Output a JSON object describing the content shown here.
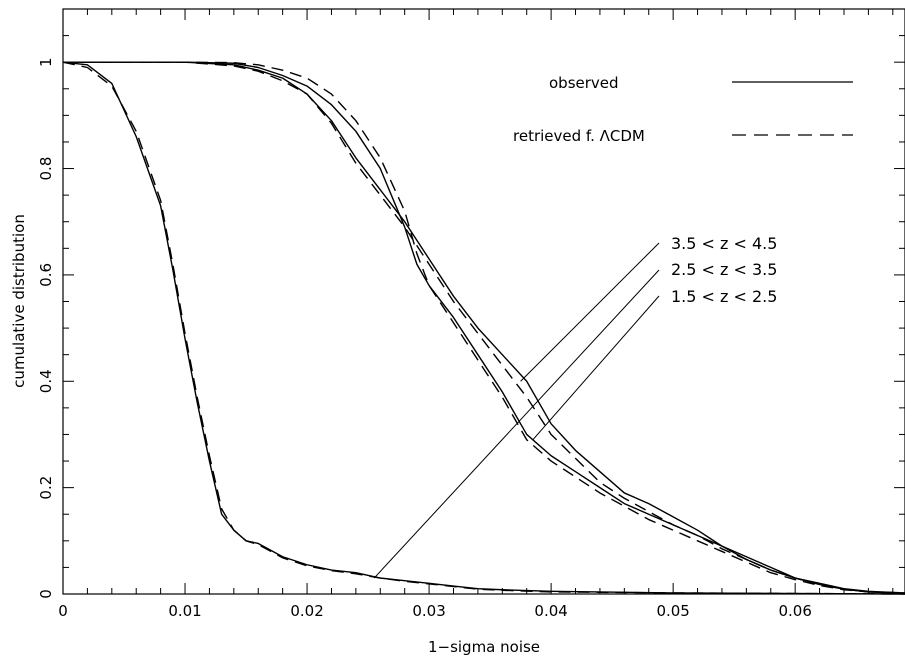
{
  "chart_data": {
    "type": "line",
    "title": "",
    "xlabel": "1−sigma noise",
    "ylabel": "cumulative distribution",
    "xlim": [
      0,
      0.069
    ],
    "ylim": [
      0,
      1.1
    ],
    "x_ticks": [
      0,
      0.01,
      0.02,
      0.03,
      0.04,
      0.05,
      0.06
    ],
    "x_tick_labels": [
      "0",
      "0.01",
      "0.02",
      "0.03",
      "0.04",
      "0.05",
      "0.06"
    ],
    "y_ticks": [
      0,
      0.2,
      0.4,
      0.6,
      0.8,
      1
    ],
    "y_tick_labels": [
      "0",
      "0.2",
      "0.4",
      "0.6",
      "0.8",
      "1"
    ],
    "grid": false,
    "legend": {
      "placement": "top-right",
      "entries": [
        {
          "label": "observed",
          "style": "solid"
        },
        {
          "label": "retrieved f. ΛCDM",
          "style": "dashed"
        }
      ]
    },
    "annotations": [
      {
        "text": "3.5 < z < 4.5",
        "points_to": [
          0.0375,
          0.4
        ]
      },
      {
        "text": "2.5 < z < 3.5",
        "points_to": [
          0.0255,
          0.03
        ]
      },
      {
        "text": "1.5 < z < 2.5",
        "points_to": [
          0.0385,
          0.29
        ]
      }
    ],
    "series": [
      {
        "style": "solid",
        "x": [
          0,
          0.002,
          0.004,
          0.006,
          0.008,
          0.009,
          0.01,
          0.011,
          0.012,
          0.013,
          0.014,
          0.015,
          0.016,
          0.018,
          0.02,
          0.022,
          0.024,
          0.026,
          0.028,
          0.03,
          0.032,
          0.034,
          0.036,
          0.04,
          0.05,
          0.069
        ],
        "y": [
          1.0,
          0.995,
          0.96,
          0.86,
          0.73,
          0.61,
          0.48,
          0.36,
          0.25,
          0.15,
          0.12,
          0.1,
          0.095,
          0.07,
          0.055,
          0.045,
          0.04,
          0.03,
          0.025,
          0.02,
          0.015,
          0.01,
          0.008,
          0.005,
          0.002,
          0.0
        ]
      },
      {
        "style": "dashed",
        "x": [
          0,
          0.002,
          0.004,
          0.006,
          0.008,
          0.009,
          0.01,
          0.011,
          0.012,
          0.013,
          0.014,
          0.015,
          0.016,
          0.018,
          0.02,
          0.022,
          0.024,
          0.026,
          0.028,
          0.03,
          0.032,
          0.034,
          0.036,
          0.04,
          0.05,
          0.069
        ],
        "y": [
          1.0,
          0.99,
          0.955,
          0.87,
          0.74,
          0.62,
          0.49,
          0.37,
          0.26,
          0.16,
          0.12,
          0.1,
          0.093,
          0.068,
          0.053,
          0.044,
          0.038,
          0.03,
          0.024,
          0.019,
          0.014,
          0.009,
          0.007,
          0.004,
          0.002,
          0.0
        ]
      },
      {
        "style": "solid",
        "x": [
          0,
          0.01,
          0.014,
          0.016,
          0.018,
          0.02,
          0.022,
          0.024,
          0.026,
          0.028,
          0.03,
          0.032,
          0.034,
          0.036,
          0.038,
          0.04,
          0.042,
          0.044,
          0.046,
          0.048,
          0.05,
          0.052,
          0.054,
          0.056,
          0.058,
          0.06,
          0.062,
          0.064,
          0.066,
          0.069
        ],
        "y": [
          1.0,
          1.0,
          0.995,
          0.985,
          0.97,
          0.94,
          0.89,
          0.82,
          0.76,
          0.7,
          0.63,
          0.56,
          0.5,
          0.45,
          0.4,
          0.32,
          0.27,
          0.23,
          0.19,
          0.17,
          0.145,
          0.12,
          0.09,
          0.07,
          0.05,
          0.03,
          0.02,
          0.01,
          0.005,
          0.002
        ]
      },
      {
        "style": "dashed",
        "x": [
          0,
          0.01,
          0.014,
          0.016,
          0.018,
          0.02,
          0.022,
          0.024,
          0.026,
          0.028,
          0.03,
          0.032,
          0.034,
          0.036,
          0.038,
          0.04,
          0.042,
          0.044,
          0.046,
          0.048,
          0.05,
          0.052,
          0.054,
          0.056,
          0.058,
          0.06,
          0.062,
          0.064,
          0.066,
          0.069
        ],
        "y": [
          1.0,
          1.0,
          0.993,
          0.983,
          0.965,
          0.94,
          0.885,
          0.81,
          0.75,
          0.69,
          0.62,
          0.55,
          0.49,
          0.43,
          0.37,
          0.3,
          0.255,
          0.21,
          0.18,
          0.155,
          0.13,
          0.11,
          0.085,
          0.065,
          0.045,
          0.03,
          0.018,
          0.009,
          0.004,
          0.002
        ]
      },
      {
        "style": "solid",
        "x": [
          0,
          0.01,
          0.014,
          0.016,
          0.018,
          0.02,
          0.022,
          0.024,
          0.026,
          0.028,
          0.029,
          0.03,
          0.032,
          0.034,
          0.036,
          0.038,
          0.04,
          0.042,
          0.044,
          0.046,
          0.048,
          0.05,
          0.052,
          0.054,
          0.056,
          0.058,
          0.06,
          0.062,
          0.064,
          0.066,
          0.069
        ],
        "y": [
          1.0,
          1.0,
          0.998,
          0.99,
          0.975,
          0.955,
          0.92,
          0.87,
          0.8,
          0.69,
          0.62,
          0.58,
          0.52,
          0.45,
          0.38,
          0.3,
          0.26,
          0.23,
          0.2,
          0.17,
          0.15,
          0.13,
          0.11,
          0.09,
          0.065,
          0.045,
          0.03,
          0.018,
          0.009,
          0.004,
          0.001
        ]
      },
      {
        "style": "dashed",
        "x": [
          0,
          0.01,
          0.014,
          0.016,
          0.018,
          0.02,
          0.022,
          0.024,
          0.026,
          0.028,
          0.029,
          0.03,
          0.032,
          0.034,
          0.036,
          0.038,
          0.04,
          0.042,
          0.044,
          0.046,
          0.048,
          0.05,
          0.052,
          0.054,
          0.056,
          0.058,
          0.06,
          0.062,
          0.064,
          0.066,
          0.069
        ],
        "y": [
          1.0,
          1.0,
          0.999,
          0.995,
          0.985,
          0.97,
          0.94,
          0.89,
          0.82,
          0.72,
          0.64,
          0.58,
          0.51,
          0.44,
          0.37,
          0.29,
          0.25,
          0.22,
          0.19,
          0.165,
          0.14,
          0.12,
          0.1,
          0.08,
          0.06,
          0.04,
          0.027,
          0.016,
          0.008,
          0.004,
          0.001
        ]
      }
    ]
  }
}
